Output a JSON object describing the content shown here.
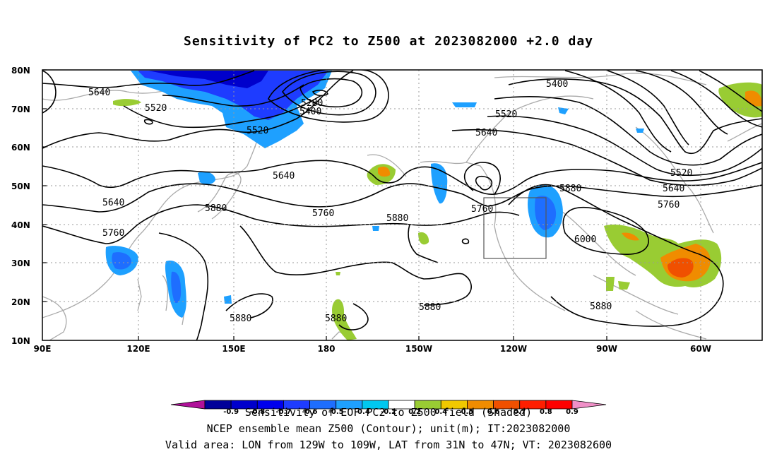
{
  "title": "Sensitivity of PC2 to Z500 at 2023082000 +2.0 day",
  "lat_labels": [
    "80N",
    "70N",
    "60N",
    "50N",
    "40N",
    "30N",
    "20N",
    "10N"
  ],
  "lon_labels": [
    "90E",
    "120E",
    "150E",
    "180",
    "150W",
    "120W",
    "90W",
    "60W"
  ],
  "contour_labels": [
    {
      "text": "5640"
    },
    {
      "text": "5520"
    },
    {
      "text": "5280"
    },
    {
      "text": "5400"
    },
    {
      "text": "5520"
    },
    {
      "text": "5400"
    },
    {
      "text": "5520"
    },
    {
      "text": "5640"
    },
    {
      "text": "5640"
    },
    {
      "text": "5640"
    },
    {
      "text": "5880"
    },
    {
      "text": "5760"
    },
    {
      "text": "5760"
    },
    {
      "text": "5880"
    },
    {
      "text": "5760"
    },
    {
      "text": "5880"
    },
    {
      "text": "6000"
    },
    {
      "text": "5520"
    },
    {
      "text": "5640"
    },
    {
      "text": "5760"
    },
    {
      "text": "5880"
    },
    {
      "text": "5880"
    },
    {
      "text": "5880"
    },
    {
      "text": "5880"
    }
  ],
  "colorbar": {
    "labels": [
      "-0.9",
      "-0.8",
      "-0.7",
      "-0.6",
      "-0.5",
      "-0.4",
      "-0.2",
      "0.2",
      "0.4",
      "0.5",
      "0.6",
      "0.7",
      "0.8",
      "0.9"
    ],
    "colors": [
      "#b01099",
      "#000099",
      "#0000cc",
      "#0000ee",
      "#1e3cff",
      "#1e6eff",
      "#1ea0ff",
      "#00c8f0",
      "#ffffff",
      "#99cc33",
      "#f0c800",
      "#f08c00",
      "#f05000",
      "#ff1e00",
      "#ff0000",
      "#f090c8"
    ]
  },
  "footer": {
    "line1": "Sensitivity of EOF PC2 to Z500 field (Shaded)",
    "line2": "NCEP ensemble mean Z500 (Contour); unit(m); IT:2023082000",
    "line3": "Valid area: LON from 129W to 109W, LAT from 31N to 47N; VT: 2023082600"
  },
  "valid_box": {
    "lon_min": -129,
    "lon_max": -109,
    "lat_min": 31,
    "lat_max": 47
  }
}
